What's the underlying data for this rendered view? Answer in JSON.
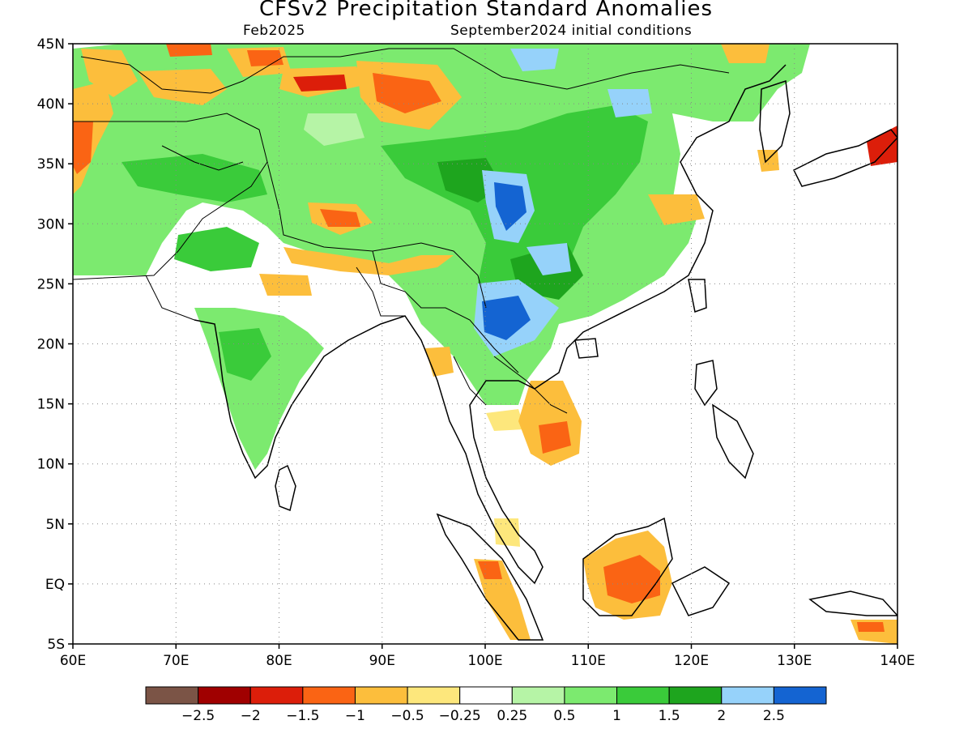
{
  "title": "CFSv2 Precipitation Standard Anomalies",
  "subtitle_left": "Feb2025",
  "subtitle_right": "September2024 initial conditions",
  "map": {
    "lon_range": [
      60,
      140
    ],
    "lat_range": [
      -5,
      45
    ],
    "x_ticks": [
      "60E",
      "70E",
      "80E",
      "90E",
      "100E",
      "110E",
      "120E",
      "130E",
      "140E"
    ],
    "y_ticks": [
      "45N",
      "40N",
      "35N",
      "30N",
      "25N",
      "20N",
      "15N",
      "10N",
      "5N",
      "EQ",
      "5S"
    ],
    "grid_lines": "dotted"
  },
  "colorbar": {
    "colors": [
      "#7b5446",
      "#a00000",
      "#dc1e0a",
      "#fa6414",
      "#fcbe3c",
      "#fde77c",
      "#ffffff",
      "#b6f4a6",
      "#7cea6f",
      "#3acb3a",
      "#1ea51e",
      "#96d2fa",
      "#1464d2"
    ],
    "labels": [
      "−2.5",
      "−2",
      "−1.5",
      "−1",
      "−0.5",
      "−0.25",
      "0.25",
      "0.5",
      "1",
      "1.5",
      "2",
      "2.5"
    ]
  }
}
